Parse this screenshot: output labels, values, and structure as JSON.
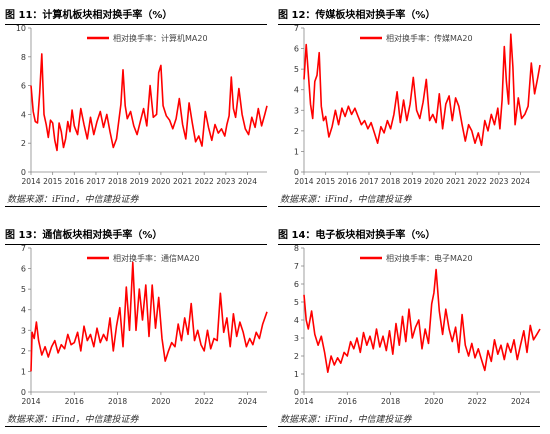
{
  "panels": [
    {
      "title": "图 11：计算机板块相对换手率（%）",
      "source": "数据来源：iFind，中信建投证券",
      "chart_data": {
        "type": "line",
        "title": "",
        "xlabel": "",
        "ylabel": "",
        "xlim": [
          2014,
          2024.9
        ],
        "ylim": [
          0,
          10
        ],
        "yticks": [
          0,
          2,
          4,
          6,
          8,
          10
        ],
        "xticks": [
          2014,
          2015,
          2016,
          2017,
          2018,
          2019,
          2020,
          2021,
          2022,
          2023,
          2024
        ],
        "grid": false,
        "legend": "top-center",
        "series": [
          {
            "name": "相对换手率：计算机MA20",
            "color": "#ff0000",
            "x": [
              2014.0,
              2014.1,
              2014.2,
              2014.3,
              2014.4,
              2014.5,
              2014.6,
              2014.7,
              2014.8,
              2014.9,
              2015.0,
              2015.1,
              2015.2,
              2015.3,
              2015.4,
              2015.5,
              2015.6,
              2015.7,
              2015.8,
              2015.9,
              2016.0,
              2016.15,
              2016.3,
              2016.45,
              2016.6,
              2016.75,
              2016.9,
              2017.05,
              2017.2,
              2017.35,
              2017.5,
              2017.65,
              2017.8,
              2017.95,
              2018.05,
              2018.15,
              2018.25,
              2018.35,
              2018.45,
              2018.6,
              2018.75,
              2018.9,
              2019.05,
              2019.2,
              2019.35,
              2019.5,
              2019.65,
              2019.8,
              2019.9,
              2020.0,
              2020.1,
              2020.25,
              2020.4,
              2020.55,
              2020.7,
              2020.85,
              2021.0,
              2021.15,
              2021.3,
              2021.45,
              2021.6,
              2021.75,
              2021.9,
              2022.05,
              2022.2,
              2022.35,
              2022.5,
              2022.65,
              2022.8,
              2022.95,
              2023.05,
              2023.15,
              2023.25,
              2023.35,
              2023.45,
              2023.6,
              2023.75,
              2023.9,
              2024.05,
              2024.2,
              2024.35,
              2024.5,
              2024.65,
              2024.8,
              2024.9
            ],
            "y": [
              6.0,
              4.2,
              3.5,
              3.4,
              5.5,
              8.2,
              4.0,
              3.3,
              2.4,
              3.6,
              3.4,
              2.2,
              1.5,
              3.4,
              2.8,
              1.7,
              2.3,
              3.5,
              2.8,
              4.3,
              3.2,
              2.6,
              4.4,
              3.3,
              2.3,
              3.8,
              2.6,
              3.5,
              4.2,
              3.1,
              4.0,
              2.8,
              1.7,
              2.3,
              3.5,
              4.7,
              7.1,
              4.6,
              3.7,
              4.2,
              3.2,
              2.6,
              3.5,
              4.4,
              3.2,
              6.0,
              3.8,
              4.0,
              6.9,
              7.4,
              4.6,
              3.9,
              3.6,
              3.0,
              3.7,
              5.1,
              3.3,
              2.3,
              4.8,
              3.4,
              2.1,
              2.5,
              1.8,
              4.2,
              3.1,
              2.2,
              3.3,
              2.7,
              3.0,
              2.5,
              3.3,
              3.9,
              6.6,
              4.4,
              3.8,
              5.8,
              4.0,
              3.0,
              2.6,
              3.8,
              3.1,
              4.4,
              3.2,
              4.0,
              4.6
            ]
          }
        ]
      }
    },
    {
      "title": "图 12：传媒板块相对换手率（%）",
      "source": "数据来源：iFind，中信建投证券",
      "chart_data": {
        "type": "line",
        "title": "",
        "xlabel": "",
        "ylabel": "",
        "xlim": [
          2014,
          2024.9
        ],
        "ylim": [
          0,
          7
        ],
        "yticks": [
          0,
          1,
          2,
          3,
          4,
          5,
          6,
          7
        ],
        "xticks": [
          2014,
          2015,
          2016,
          2017,
          2018,
          2019,
          2020,
          2021,
          2022,
          2023,
          2024
        ],
        "grid": false,
        "legend": "top-center",
        "series": [
          {
            "name": "相对换手率：传媒MA20",
            "color": "#ff0000",
            "x": [
              2014.0,
              2014.1,
              2014.2,
              2014.3,
              2014.4,
              2014.5,
              2014.6,
              2014.7,
              2014.8,
              2014.9,
              2015.0,
              2015.15,
              2015.3,
              2015.45,
              2015.6,
              2015.75,
              2015.9,
              2016.05,
              2016.2,
              2016.35,
              2016.5,
              2016.65,
              2016.8,
              2016.95,
              2017.1,
              2017.25,
              2017.4,
              2017.55,
              2017.7,
              2017.85,
              2018.0,
              2018.15,
              2018.3,
              2018.45,
              2018.6,
              2018.75,
              2018.9,
              2019.05,
              2019.2,
              2019.35,
              2019.5,
              2019.65,
              2019.8,
              2019.95,
              2020.1,
              2020.25,
              2020.4,
              2020.55,
              2020.7,
              2020.85,
              2021.0,
              2021.15,
              2021.3,
              2021.45,
              2021.6,
              2021.75,
              2021.9,
              2022.05,
              2022.2,
              2022.35,
              2022.5,
              2022.65,
              2022.8,
              2022.95,
              2023.05,
              2023.15,
              2023.25,
              2023.35,
              2023.45,
              2023.55,
              2023.65,
              2023.75,
              2023.9,
              2024.05,
              2024.2,
              2024.35,
              2024.5,
              2024.65,
              2024.8,
              2024.9
            ],
            "y": [
              4.5,
              6.2,
              4.8,
              3.3,
              2.6,
              4.4,
              4.7,
              5.8,
              3.2,
              2.5,
              2.7,
              1.7,
              2.2,
              3.0,
              2.3,
              3.1,
              2.7,
              3.2,
              2.8,
              3.1,
              2.7,
              2.3,
              2.5,
              2.1,
              2.4,
              1.9,
              1.4,
              2.2,
              1.9,
              2.5,
              2.1,
              2.8,
              3.9,
              2.4,
              3.5,
              2.5,
              3.3,
              4.6,
              3.0,
              2.6,
              3.4,
              4.5,
              2.5,
              2.8,
              2.4,
              3.8,
              2.1,
              3.3,
              3.7,
              2.5,
              3.6,
              3.2,
              2.3,
              1.5,
              2.3,
              2.0,
              1.4,
              1.9,
              1.3,
              2.5,
              2.0,
              2.8,
              2.3,
              3.1,
              2.1,
              3.5,
              6.1,
              4.4,
              3.3,
              6.7,
              5.1,
              2.3,
              3.6,
              2.6,
              2.8,
              3.2,
              5.3,
              3.8,
              4.6,
              5.2
            ]
          }
        ]
      }
    },
    {
      "title": "图 13：通信板块相对换手率（%）",
      "source": "数据来源：iFind，中信建投证券",
      "chart_data": {
        "type": "line",
        "title": "",
        "xlabel": "",
        "ylabel": "",
        "xlim": [
          2014,
          2024.9
        ],
        "ylim": [
          0,
          7
        ],
        "yticks": [
          0,
          1,
          2,
          3,
          4,
          5,
          6,
          7
        ],
        "xticks": [
          2014,
          2016,
          2018,
          2020,
          2022,
          2024
        ],
        "grid": false,
        "legend": "top-center",
        "series": [
          {
            "name": "相对换手率：通信MA20",
            "color": "#ff0000",
            "x": [
              2014.0,
              2014.05,
              2014.15,
              2014.25,
              2014.35,
              2014.5,
              2014.65,
              2014.8,
              2014.95,
              2015.1,
              2015.25,
              2015.4,
              2015.55,
              2015.7,
              2015.85,
              2016.0,
              2016.15,
              2016.3,
              2016.45,
              2016.6,
              2016.75,
              2016.9,
              2017.05,
              2017.2,
              2017.35,
              2017.5,
              2017.65,
              2017.8,
              2017.95,
              2018.1,
              2018.25,
              2018.4,
              2018.55,
              2018.7,
              2018.85,
              2019.0,
              2019.15,
              2019.3,
              2019.45,
              2019.6,
              2019.75,
              2019.9,
              2020.05,
              2020.2,
              2020.35,
              2020.5,
              2020.65,
              2020.8,
              2020.95,
              2021.1,
              2021.25,
              2021.4,
              2021.55,
              2021.7,
              2021.85,
              2022.0,
              2022.15,
              2022.3,
              2022.45,
              2022.6,
              2022.75,
              2022.9,
              2023.05,
              2023.2,
              2023.35,
              2023.5,
              2023.65,
              2023.8,
              2023.95,
              2024.1,
              2024.25,
              2024.4,
              2024.55,
              2024.7,
              2024.9
            ],
            "y": [
              1.0,
              2.9,
              2.6,
              3.4,
              2.5,
              1.8,
              2.2,
              1.7,
              2.2,
              2.5,
              1.9,
              2.3,
              2.1,
              2.8,
              2.3,
              2.4,
              2.9,
              2.0,
              3.2,
              2.5,
              2.8,
              2.2,
              3.1,
              2.4,
              2.8,
              2.5,
              3.6,
              2.0,
              3.2,
              4.1,
              2.2,
              5.1,
              3.0,
              6.3,
              3.0,
              5.0,
              3.5,
              5.2,
              2.7,
              5.2,
              3.1,
              4.6,
              2.6,
              1.5,
              2.0,
              2.4,
              2.2,
              3.3,
              2.5,
              3.6,
              2.8,
              4.3,
              2.5,
              3.0,
              2.3,
              2.0,
              3.0,
              2.1,
              2.6,
              2.5,
              4.8,
              2.9,
              3.6,
              2.2,
              3.8,
              2.7,
              3.4,
              2.9,
              2.2,
              2.6,
              2.3,
              2.9,
              2.6,
              3.3,
              3.9
            ]
          }
        ]
      }
    },
    {
      "title": "图 14：电子板块相对换手率（%）",
      "source": "数据来源：iFind，中信建投证券",
      "chart_data": {
        "type": "line",
        "title": "",
        "xlabel": "",
        "ylabel": "",
        "xlim": [
          2014,
          2024.9
        ],
        "ylim": [
          0,
          8
        ],
        "yticks": [
          0,
          1,
          2,
          3,
          4,
          5,
          6,
          7,
          8
        ],
        "xticks": [
          2014,
          2016,
          2018,
          2020,
          2022,
          2024
        ],
        "grid": false,
        "legend": "top-center",
        "series": [
          {
            "name": "相对换手率：电子MA20",
            "color": "#ff0000",
            "x": [
              2014.0,
              2014.1,
              2014.2,
              2014.35,
              2014.5,
              2014.65,
              2014.8,
              2014.95,
              2015.1,
              2015.25,
              2015.4,
              2015.55,
              2015.7,
              2015.85,
              2016.0,
              2016.15,
              2016.3,
              2016.45,
              2016.6,
              2016.75,
              2016.9,
              2017.05,
              2017.2,
              2017.35,
              2017.5,
              2017.65,
              2017.8,
              2017.95,
              2018.1,
              2018.25,
              2018.4,
              2018.55,
              2018.7,
              2018.85,
              2019.0,
              2019.15,
              2019.3,
              2019.45,
              2019.6,
              2019.75,
              2019.9,
              2020.0,
              2020.1,
              2020.25,
              2020.4,
              2020.55,
              2020.7,
              2020.85,
              2021.0,
              2021.15,
              2021.3,
              2021.45,
              2021.6,
              2021.75,
              2021.9,
              2022.05,
              2022.2,
              2022.35,
              2022.5,
              2022.65,
              2022.8,
              2022.95,
              2023.1,
              2023.25,
              2023.4,
              2023.55,
              2023.7,
              2023.85,
              2024.0,
              2024.15,
              2024.3,
              2024.45,
              2024.6,
              2024.75,
              2024.9
            ],
            "y": [
              5.4,
              4.0,
              3.5,
              4.5,
              3.2,
              2.6,
              3.1,
              2.2,
              1.1,
              2.0,
              1.5,
              1.9,
              1.6,
              2.2,
              2.0,
              2.8,
              2.4,
              3.0,
              2.2,
              3.3,
              2.6,
              3.1,
              2.4,
              3.5,
              2.5,
              3.1,
              2.3,
              3.4,
              2.1,
              3.8,
              2.6,
              4.2,
              2.8,
              4.6,
              3.0,
              3.6,
              4.0,
              2.4,
              3.5,
              2.7,
              4.9,
              5.5,
              6.8,
              4.5,
              3.2,
              4.6,
              3.5,
              2.8,
              3.6,
              2.2,
              4.3,
              2.6,
              2.0,
              2.7,
              1.9,
              2.4,
              1.8,
              1.2,
              2.3,
              1.7,
              2.9,
              2.1,
              2.6,
              1.8,
              2.7,
              2.2,
              2.9,
              1.8,
              2.6,
              3.4,
              2.2,
              3.7,
              2.9,
              3.2,
              3.5
            ]
          }
        ]
      }
    }
  ]
}
